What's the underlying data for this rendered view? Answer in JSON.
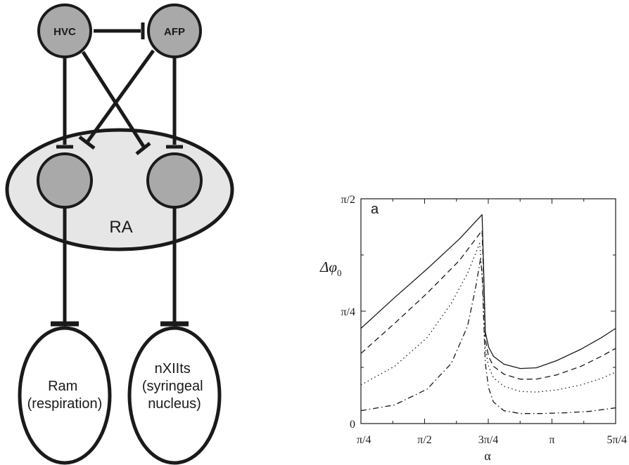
{
  "diagram": {
    "nodes": {
      "hvc": "HVC",
      "afp": "AFP",
      "ra": "RA",
      "ram": [
        "Ram",
        "(respiration)"
      ],
      "nxii": [
        "nXIIts",
        "(syringeal",
        "nucleus)"
      ]
    },
    "colors": {
      "node_fill": "#a9a9a9",
      "ra_fill": "#e6e6e6",
      "stroke": "#1a1a1a"
    }
  },
  "chart_data": {
    "type": "line",
    "panel_label": "a",
    "xlabel": "α",
    "ylabel": "Δφ",
    "ylabel_sub": "0",
    "xlim": [
      0.7854,
      3.927
    ],
    "ylim": [
      0,
      1.5708
    ],
    "x_ticks": [
      {
        "value": 0.7854,
        "label": "π/4"
      },
      {
        "value": 1.5708,
        "label": "π/2"
      },
      {
        "value": 2.3562,
        "label": "3π/4"
      },
      {
        "value": 3.1416,
        "label": "π"
      },
      {
        "value": 3.927,
        "label": "5π/4"
      }
    ],
    "y_ticks": [
      {
        "value": 0,
        "label": "0"
      },
      {
        "value": 0.7854,
        "label": "π/4"
      },
      {
        "value": 1.5708,
        "label": "π/2"
      }
    ],
    "series": [
      {
        "style": "solid",
        "x": [
          0.7854,
          1.2,
          1.6,
          2.0,
          2.28,
          2.3,
          2.32,
          2.36,
          2.42,
          2.55,
          2.75,
          2.95,
          3.2,
          3.5,
          3.75,
          3.927
        ],
        "y": [
          0.665,
          0.88,
          1.08,
          1.29,
          1.46,
          1.06,
          0.64,
          0.535,
          0.47,
          0.415,
          0.385,
          0.39,
          0.44,
          0.52,
          0.6,
          0.665
        ]
      },
      {
        "style": "dashed",
        "x": [
          0.7854,
          1.2,
          1.6,
          2.0,
          2.28,
          2.3,
          2.32,
          2.36,
          2.42,
          2.55,
          2.75,
          2.95,
          3.2,
          3.5,
          3.75,
          3.927
        ],
        "y": [
          0.49,
          0.7,
          0.91,
          1.14,
          1.35,
          1.0,
          0.59,
          0.47,
          0.4,
          0.345,
          0.31,
          0.31,
          0.34,
          0.4,
          0.47,
          0.525
        ]
      },
      {
        "style": "dotted",
        "x": [
          0.7854,
          1.2,
          1.6,
          1.9,
          2.1,
          2.25,
          2.29,
          2.31,
          2.36,
          2.42,
          2.55,
          2.75,
          2.95,
          3.2,
          3.5,
          3.75,
          3.927
        ],
        "y": [
          0.27,
          0.4,
          0.6,
          0.84,
          1.05,
          1.26,
          0.95,
          0.56,
          0.4,
          0.32,
          0.26,
          0.225,
          0.22,
          0.235,
          0.27,
          0.315,
          0.36
        ]
      },
      {
        "style": "dashdot",
        "x": [
          0.7854,
          1.2,
          1.6,
          1.9,
          2.1,
          2.2,
          2.26,
          2.28,
          2.3,
          2.32,
          2.36,
          2.42,
          2.55,
          2.75,
          3.0,
          3.3,
          3.6,
          3.927
        ],
        "y": [
          0.09,
          0.13,
          0.24,
          0.42,
          0.68,
          0.95,
          1.15,
          1.05,
          0.72,
          0.42,
          0.25,
          0.15,
          0.09,
          0.07,
          0.07,
          0.075,
          0.085,
          0.11
        ]
      }
    ]
  }
}
